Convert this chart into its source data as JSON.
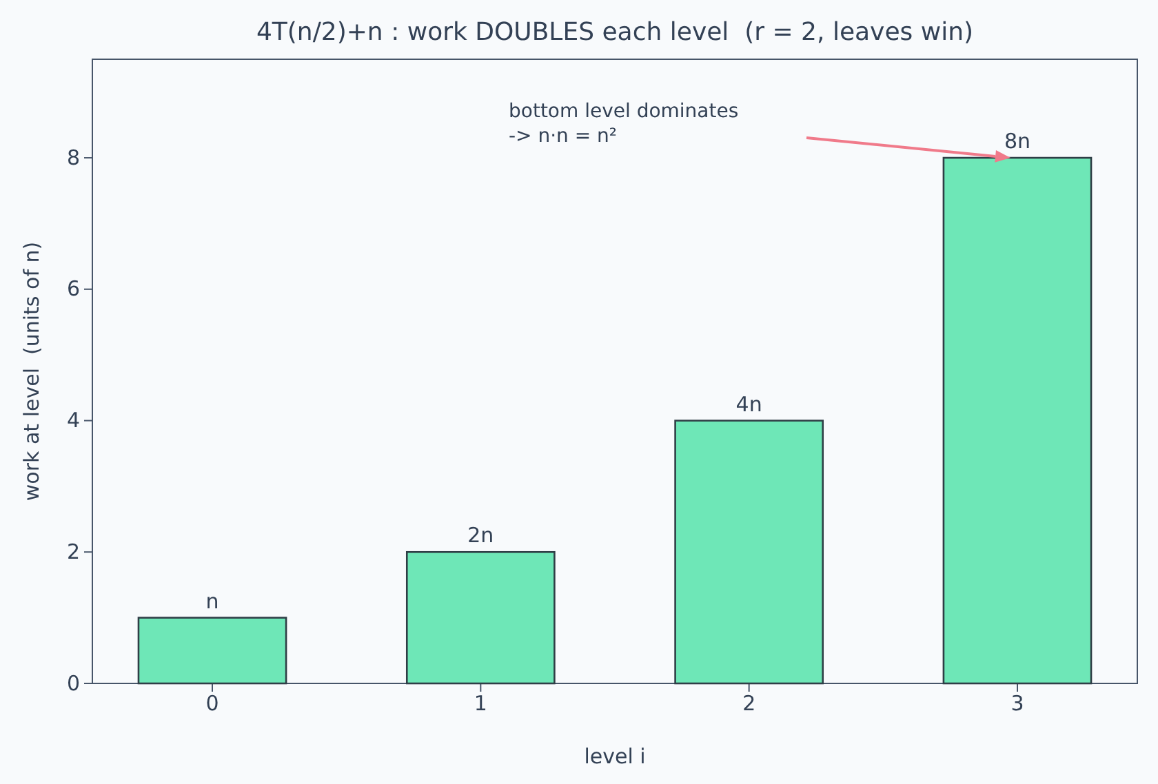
{
  "chart_data": {
    "type": "bar",
    "title": "4T(n/2)+n : work DOUBLES each level  (r = 2, leaves win)",
    "xlabel": "level i",
    "ylabel": "work at level  (units of n)",
    "categories": [
      "0",
      "1",
      "2",
      "3"
    ],
    "values": [
      1,
      2,
      4,
      8
    ],
    "value_labels": [
      "n",
      "2n",
      "4n",
      "8n"
    ],
    "color": "#6ee7b7",
    "ylim": [
      0,
      9.5
    ],
    "yticks": [
      0,
      2,
      4,
      6,
      8
    ],
    "grid": false,
    "annotations": [
      "bottom level dominates\n-> n·n = n²"
    ]
  }
}
